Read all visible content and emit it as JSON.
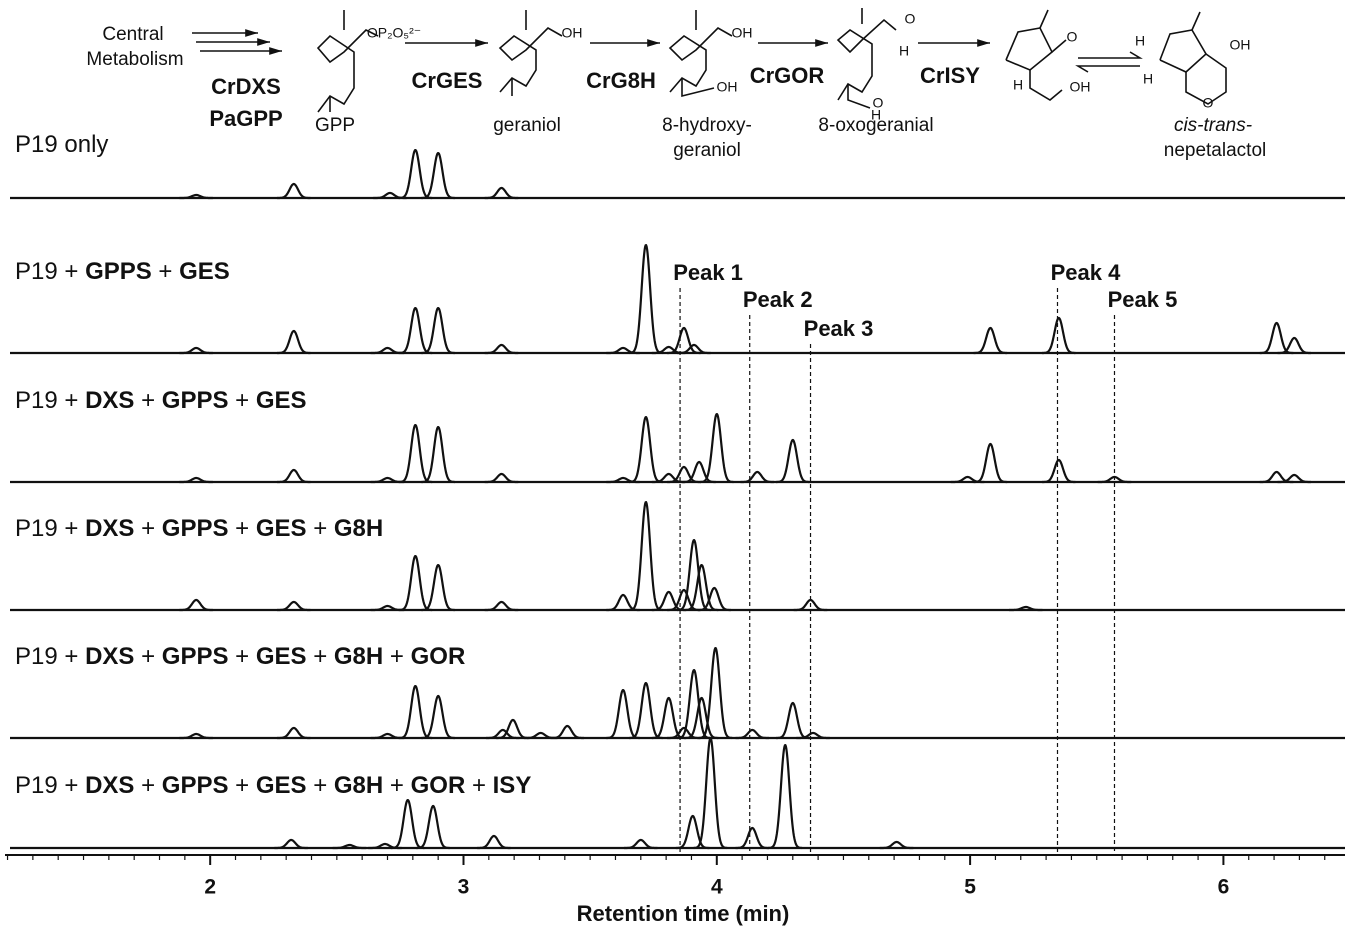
{
  "pathway": {
    "items": [
      {
        "text": "Central"
      },
      {
        "text": "Metabolism"
      },
      {
        "text": "CrDXS",
        "bold": true
      },
      {
        "text": "PaGPP",
        "bold": true
      },
      {
        "text": "GPP"
      },
      {
        "text": "CrGES",
        "bold": true
      },
      {
        "text": "geraniol"
      },
      {
        "text": "CrG8H",
        "bold": true
      },
      {
        "text": "8-hydroxy-"
      },
      {
        "text": "geraniol"
      },
      {
        "text": "CrGOR",
        "bold": true
      },
      {
        "text": "8-oxogeranial"
      },
      {
        "text": "CrISY",
        "bold": true
      },
      {
        "text": "cis-trans-",
        "italic": true
      },
      {
        "text": "nepetalactol"
      }
    ],
    "structure_labels": [
      "OP₂O₅²⁻",
      "OH",
      "OH",
      "OH",
      "O",
      "H",
      "O",
      "H",
      "O",
      "H",
      "OH",
      "H",
      "OH",
      "H",
      "O"
    ]
  },
  "chart_data": {
    "type": "chromatogram",
    "xlabel": "Retention time (min)",
    "xlim": [
      1.19,
      6.48
    ],
    "xticks": [
      2,
      3,
      4,
      5,
      6
    ],
    "xminor_step": 0.1,
    "color": "#111111",
    "traces": [
      {
        "label": [
          {
            "text": "P19 only"
          }
        ],
        "peak_times": [
          1.945,
          2.33,
          2.71,
          2.81,
          2.9,
          3.15
        ],
        "peak_heights": [
          3,
          14,
          5,
          48,
          45,
          10
        ]
      },
      {
        "label": [
          {
            "text": "P19 + "
          },
          {
            "text": "GPPS",
            "bold": true
          },
          {
            "text": " + "
          },
          {
            "text": "GES",
            "bold": true
          }
        ],
        "peak_times": [
          1.945,
          2.33,
          2.7,
          2.81,
          2.9,
          3.15,
          3.63,
          3.72,
          3.81,
          3.87,
          3.91,
          5.08,
          5.35,
          6.21,
          6.28
        ],
        "peak_heights": [
          5,
          22,
          5,
          45,
          45,
          8,
          5,
          108,
          6,
          25,
          8,
          25,
          35,
          30,
          15
        ]
      },
      {
        "label": [
          {
            "text": "P19 + "
          },
          {
            "text": "DXS",
            "bold": true
          },
          {
            "text": " + "
          },
          {
            "text": "GPPS",
            "bold": true
          },
          {
            "text": " + "
          },
          {
            "text": "GES",
            "bold": true
          }
        ],
        "peak_times": [
          1.945,
          2.33,
          2.7,
          2.81,
          2.9,
          3.15,
          3.63,
          3.72,
          3.81,
          3.87,
          3.93,
          4.0,
          4.16,
          4.3,
          4.99,
          5.08,
          5.35,
          5.57,
          6.21,
          6.28
        ],
        "peak_heights": [
          4,
          12,
          4,
          57,
          55,
          8,
          4,
          65,
          8,
          15,
          20,
          68,
          10,
          42,
          5,
          38,
          22,
          5,
          10,
          7
        ]
      },
      {
        "label": [
          {
            "text": "P19 + "
          },
          {
            "text": "DXS",
            "bold": true
          },
          {
            "text": " + "
          },
          {
            "text": "GPPS",
            "bold": true
          },
          {
            "text": " + "
          },
          {
            "text": "GES",
            "bold": true
          },
          {
            "text": " + "
          },
          {
            "text": "G8H",
            "bold": true
          }
        ],
        "peak_times": [
          1.945,
          2.33,
          2.7,
          2.81,
          2.9,
          3.15,
          3.63,
          3.72,
          3.81,
          3.87,
          3.91,
          3.94,
          3.99,
          4.37,
          5.22
        ],
        "peak_heights": [
          10,
          8,
          4,
          54,
          45,
          8,
          15,
          108,
          18,
          20,
          70,
          45,
          22,
          10,
          3
        ]
      },
      {
        "label": [
          {
            "text": "P19 + "
          },
          {
            "text": "DXS",
            "bold": true
          },
          {
            "text": " + "
          },
          {
            "text": "GPPS",
            "bold": true
          },
          {
            "text": " + "
          },
          {
            "text": "GES",
            "bold": true
          },
          {
            "text": " + "
          },
          {
            "text": "G8H",
            "bold": true
          },
          {
            "text": " + "
          },
          {
            "text": "GOR",
            "bold": true
          }
        ],
        "peak_times": [
          1.945,
          2.33,
          2.7,
          2.81,
          2.9,
          3.155,
          3.195,
          3.305,
          3.41,
          3.63,
          3.72,
          3.81,
          3.87,
          3.91,
          3.94,
          3.995,
          4.14,
          4.3,
          4.38
        ],
        "peak_heights": [
          4,
          10,
          4,
          52,
          42,
          8,
          18,
          5,
          12,
          48,
          55,
          40,
          10,
          68,
          40,
          90,
          8,
          35,
          5
        ]
      },
      {
        "label": [
          {
            "text": "P19 + "
          },
          {
            "text": "DXS",
            "bold": true
          },
          {
            "text": " + "
          },
          {
            "text": "GPPS",
            "bold": true
          },
          {
            "text": " + "
          },
          {
            "text": "GES",
            "bold": true
          },
          {
            "text": " + "
          },
          {
            "text": "G8H",
            "bold": true
          },
          {
            "text": " + "
          },
          {
            "text": "GOR",
            "bold": true
          },
          {
            "text": " + "
          },
          {
            "text": "ISY",
            "bold": true
          }
        ],
        "peak_times": [
          2.32,
          2.55,
          2.69,
          2.78,
          2.88,
          3.12,
          3.7,
          3.905,
          3.975,
          4.14,
          4.27,
          4.71
        ],
        "peak_heights": [
          8,
          3,
          4,
          48,
          42,
          12,
          8,
          32,
          110,
          20,
          103,
          6
        ]
      }
    ],
    "markers": [
      {
        "label": "Peak 1",
        "x": 3.855
      },
      {
        "label": "Peak 2",
        "x": 4.13
      },
      {
        "label": "Peak 3",
        "x": 4.37
      },
      {
        "label": "Peak 4",
        "x": 5.345
      },
      {
        "label": "Peak 5",
        "x": 5.57
      }
    ]
  }
}
